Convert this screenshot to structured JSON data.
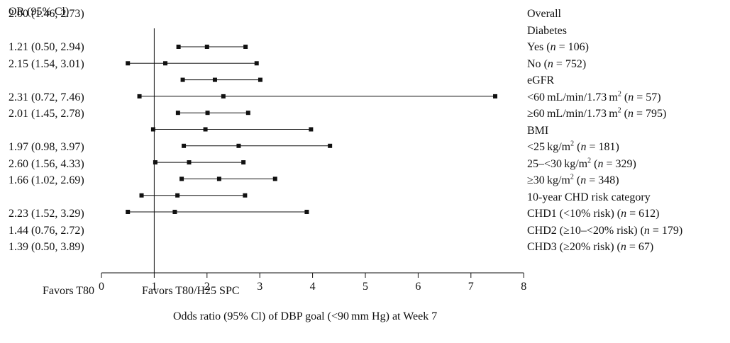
{
  "chart_data": {
    "type": "forest",
    "column_header": "OR (95% Cl)",
    "xlabel": "Odds ratio (95% Cl) of DBP goal (<90 mm Hg) at Week 7",
    "favors_left": "Favors T80",
    "favors_right": "Favors T80/H25 SPC",
    "xlim": [
      0,
      8
    ],
    "xticks": [
      "0",
      "1",
      "2",
      "3",
      "4",
      "5",
      "6",
      "7",
      "8"
    ],
    "reference_line": 1,
    "rows": [
      {
        "text": "Overall",
        "indent": 0,
        "or_text": "2.00 (1.46, 2.73)",
        "or": 2.0,
        "lo": 1.46,
        "hi": 2.73
      },
      {
        "text": "Diabetes",
        "indent": 0
      },
      {
        "text": "Yes",
        "n": "106",
        "indent": 1,
        "or_text": "1.21 (0.50, 2.94)",
        "or": 1.21,
        "lo": 0.5,
        "hi": 2.94
      },
      {
        "text": "No",
        "n": "752",
        "indent": 1,
        "or_text": "2.15 (1.54, 3.01)",
        "or": 2.15,
        "lo": 1.54,
        "hi": 3.01
      },
      {
        "text": "eGFR",
        "indent": 0
      },
      {
        "text": "<60 mL/min/1.73 m",
        "sup": "2",
        "n": "57",
        "indent": 1,
        "or_text": "2.31 (0.72, 7.46)",
        "or": 2.31,
        "lo": 0.72,
        "hi": 7.46
      },
      {
        "text": "≥60 mL/min/1.73 m",
        "sup": "2",
        "n": "795",
        "indent": 1,
        "or_text": "2.01 (1.45, 2.78)",
        "or": 2.01,
        "lo": 1.45,
        "hi": 2.78
      },
      {
        "text": "BMI",
        "indent": 0
      },
      {
        "text": "<25 kg/m",
        "sup": "2",
        "n": "181",
        "indent": 1,
        "or_text": "1.97 (0.98, 3.97)",
        "or": 1.97,
        "lo": 0.98,
        "hi": 3.97
      },
      {
        "text": "25–<30 kg/m",
        "sup": "2",
        "n": "329",
        "indent": 1,
        "or_text": "2.60 (1.56, 4.33)",
        "or": 2.6,
        "lo": 1.56,
        "hi": 4.33
      },
      {
        "text": "≥30 kg/m",
        "sup": "2",
        "n": "348",
        "indent": 1,
        "or_text": "1.66 (1.02, 2.69)",
        "or": 1.66,
        "lo": 1.02,
        "hi": 2.69
      },
      {
        "text": "10-year CHD risk category",
        "indent": 0
      },
      {
        "text": "CHD1 (<10% risk)",
        "n": "612",
        "indent": 1,
        "or_text": "2.23 (1.52, 3.29)",
        "or": 2.23,
        "lo": 1.52,
        "hi": 3.29
      },
      {
        "text": "CHD2 (≥10–<20% risk)",
        "n": "179",
        "indent": 1,
        "or_text": "1.44 (0.76, 2.72)",
        "or": 1.44,
        "lo": 0.76,
        "hi": 2.72
      },
      {
        "text": "CHD3 (≥20% risk)",
        "n": "67",
        "indent": 1,
        "or_text": "1.39 (0.50, 3.89)",
        "or": 1.39,
        "lo": 0.5,
        "hi": 3.89
      }
    ]
  }
}
